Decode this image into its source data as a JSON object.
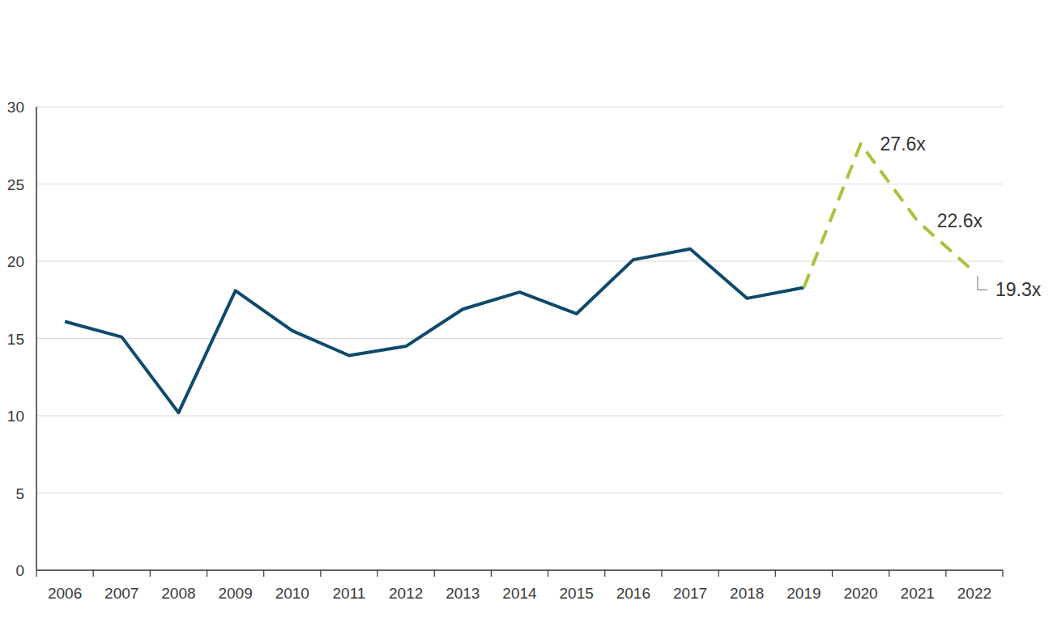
{
  "chart_data": {
    "type": "line",
    "categories": [
      "2006",
      "2007",
      "2008",
      "2009",
      "2010",
      "2011",
      "2012",
      "2013",
      "2014",
      "2015",
      "2016",
      "2017",
      "2018",
      "2019",
      "2020",
      "2021",
      "2022"
    ],
    "series": [
      {
        "color": "#0d4a6b",
        "line_style": "solid",
        "values": [
          16.1,
          15.1,
          10.2,
          18.1,
          15.5,
          13.9,
          14.5,
          16.9,
          18.0,
          16.6,
          20.1,
          20.8,
          17.6,
          18.3,
          null,
          null,
          null
        ]
      },
      {
        "color": "#a9c23b",
        "line_style": "dashed",
        "values": [
          null,
          null,
          null,
          null,
          null,
          null,
          null,
          null,
          null,
          null,
          null,
          null,
          null,
          18.3,
          27.6,
          22.6,
          19.3
        ],
        "value_labels": [
          null,
          null,
          null,
          null,
          null,
          null,
          null,
          null,
          null,
          null,
          null,
          null,
          null,
          null,
          "27.6x",
          "22.6x",
          "19.3x"
        ]
      }
    ],
    "ylim": [
      0,
      30
    ],
    "yticks": [
      0,
      5,
      10,
      15,
      20,
      25,
      30
    ],
    "grid": true,
    "data_labels": true
  }
}
